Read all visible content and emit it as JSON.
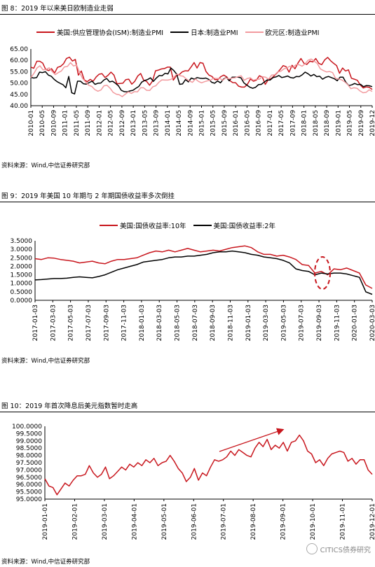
{
  "charts": [
    {
      "fig_title": "图 8：2019 年以来美日欧制造业走弱",
      "source": "资料来源：Wind,中信证券研究部",
      "legend": [
        "美国:供应管理协会(ISM):制造业PMI",
        "日本:制造业PMI",
        "欧元区:制造业PMI"
      ]
    },
    {
      "fig_title": "图 9：2019 年美国 10 年期与 2 年期国债收益率多次倒挂",
      "source": "资料来源：Wind,中信证券研究部",
      "legend": [
        "美国:国债收益率:10年",
        "美国:国债收益率:2年"
      ]
    },
    {
      "fig_title": "图 10：2019 年首次降息后美元指数暂时走高",
      "source": "资料来源：Wind,中信证券研究部",
      "legend": []
    }
  ],
  "watermark": "CITICS债券研究",
  "chart_data": [
    {
      "type": "line",
      "title": "",
      "ylim": [
        40,
        65
      ],
      "yticks": [
        "40.00",
        "45.00",
        "50.00",
        "55.00",
        "60.00",
        "65.00"
      ],
      "xticks": [
        "2010-01",
        "2010-05",
        "2010-09",
        "2011-01",
        "2011-05",
        "2011-09",
        "2012-01",
        "2012-05",
        "2012-09",
        "2013-01",
        "2013-05",
        "2013-09",
        "2014-01",
        "2014-05",
        "2014-09",
        "2015-01",
        "2015-05",
        "2015-09",
        "2016-01",
        "2016-05",
        "2016-09",
        "2017-01",
        "2017-05",
        "2017-09",
        "2018-01",
        "2018-05",
        "2018-09",
        "2019-01",
        "2019-05",
        "2019-09",
        "2019-12"
      ],
      "series": [
        {
          "name": "美国:供应管理协会(ISM):制造业PMI",
          "color": "#c8161d",
          "width": 1.5,
          "values": [
            57,
            56.5,
            59.6,
            59.6,
            58.8,
            56,
            55.5,
            56.3,
            54.4,
            56.9,
            57.3,
            58.5,
            60.8,
            61.4,
            59.7,
            60.4,
            53.5,
            55.3,
            51.4,
            50.6,
            51.6,
            50.8,
            52.7,
            53.9,
            54.1,
            52.4,
            53.4,
            54.8,
            53.5,
            49.7,
            49.8,
            49.9,
            51.5,
            51.7,
            49.5,
            50.7,
            53.1,
            54.2,
            51.3,
            50.7,
            49,
            50.9,
            55.4,
            55.7,
            56.2,
            56.4,
            57,
            57,
            51.3,
            53.2,
            53.7,
            54.9,
            55.4,
            55.3,
            57.1,
            59,
            56.6,
            59,
            58.7,
            55.1,
            53.5,
            52.9,
            51.5,
            51.5,
            52.8,
            53.5,
            52.7,
            51.1,
            50.2,
            50.1,
            48.6,
            48.2,
            48.2,
            49.5,
            51.8,
            50.8,
            51.3,
            53.2,
            52.6,
            49.4,
            51.5,
            51.9,
            53.2,
            54.5,
            56,
            57.7,
            57.2,
            54.8,
            57.8,
            56.3,
            58.8,
            60.8,
            58.7,
            58.2,
            59.7,
            59.3,
            60.8,
            58.7,
            58.1,
            60.2,
            61.3,
            59.8,
            58.7,
            57.7,
            54.3,
            56.6,
            55.3,
            55.8,
            52.1,
            51.7,
            51.2,
            49.1,
            47.8,
            48.3,
            48.1,
            47.2
          ]
        },
        {
          "name": "日本:制造业PMI",
          "color": "#000000",
          "width": 1.5,
          "values": [
            52.5,
            52.2,
            52.4,
            54.8,
            54.6,
            55,
            53.5,
            53,
            51.6,
            50.6,
            49.9,
            49.3,
            47.9,
            52.9,
            45.7,
            45.2,
            50.8,
            50.8,
            49.7,
            49.5,
            50.2,
            50.8,
            49.4,
            49.9,
            50,
            51.3,
            52,
            50.5,
            50.8,
            49.9,
            48.8,
            46.8,
            46.2,
            46.1,
            46.5,
            46.8,
            47.7,
            48.5,
            50.4,
            51.1,
            51.5,
            52.3,
            50.7,
            52.2,
            53.3,
            53.2,
            54.3,
            54,
            56.6,
            55.5,
            53.9,
            49.4,
            49.6,
            51.5,
            50.5,
            52.2,
            51.7,
            52.4,
            52.1,
            52,
            52.2,
            51.6,
            50.3,
            49.9,
            50.9,
            50.1,
            51.7,
            52.5,
            51,
            52.6,
            52.6,
            52.6,
            52.3,
            50.1,
            49.1,
            48.2,
            47.7,
            48.1,
            49.3,
            49.4,
            50.4,
            51.4,
            51.3,
            52.4,
            52.7,
            53.3,
            52.4,
            52.7,
            53.1,
            52.4,
            52.2,
            52.9,
            52.8,
            53.6,
            54.8,
            54.1,
            53.1,
            53.8,
            52.8,
            53,
            51.7,
            52.5,
            52.9,
            52.4,
            51.9,
            51,
            52.6,
            52.6,
            50.3,
            48.9,
            49.2,
            49.8,
            49.3,
            49.4,
            48.4,
            48.9,
            48.8,
            48.4
          ]
        },
        {
          "name": "欧元区:制造业PMI",
          "color": "#f29a9e",
          "width": 1.5,
          "values": [
            52.4,
            54.2,
            56.6,
            57.6,
            55.8,
            56,
            56.7,
            55.1,
            53.7,
            54.6,
            55.3,
            57.1,
            57.3,
            59,
            57.5,
            58,
            54.6,
            52,
            50.4,
            49,
            48.5,
            47.1,
            46.4,
            46.9,
            48.8,
            49,
            47.7,
            45.9,
            45.1,
            44.8,
            44,
            45.1,
            46.1,
            45.4,
            46.2,
            46.1,
            47.9,
            47.9,
            46.8,
            46.7,
            48.3,
            48.8,
            50.3,
            51.4,
            51.3,
            51.3,
            51.6,
            52.7,
            54,
            53.2,
            53,
            51.8,
            50.9,
            50.3,
            51.8,
            50.7,
            50.1,
            50.6,
            51,
            51.3,
            52.2,
            52,
            52,
            51.2,
            52.3,
            51.8,
            52.2,
            52.3,
            52.8,
            53.2,
            51.2,
            52,
            52.3,
            51.2,
            51.6,
            51.7,
            52.8,
            52.6,
            51.7,
            53.5,
            53.6,
            54.9,
            55.2,
            56.2,
            56.7,
            57.4,
            56.8,
            58.1,
            58.1,
            57.4,
            58.5,
            60.1,
            60.6,
            59.6,
            58.6,
            56.2,
            55.5,
            54.9,
            55.1,
            54.6,
            52,
            51.8,
            51.4,
            50.5,
            49.3,
            47.5,
            47.9,
            47.7,
            46.5,
            45.7,
            45.9,
            47,
            46.3
          ]
        }
      ]
    },
    {
      "type": "line",
      "title": "",
      "ylim": [
        0,
        3.5
      ],
      "yticks": [
        "0.0000",
        "0.5000",
        "1.0000",
        "1.5000",
        "2.0000",
        "2.5000",
        "3.0000",
        "3.5000"
      ],
      "xticks": [
        "2017-01-03",
        "2017-03-03",
        "2017-05-03",
        "2017-07-03",
        "2017-09-03",
        "2017-11-03",
        "2018-01-03",
        "2018-03-03",
        "2018-05-03",
        "2018-07-03",
        "2018-09-03",
        "2018-11-03",
        "2019-01-03",
        "2019-03-03",
        "2019-05-03",
        "2019-07-03",
        "2019-09-03",
        "2019-11-03",
        "2020-01-03",
        "2020-03-03"
      ],
      "series": [
        {
          "name": "美国:国债收益率:10年",
          "color": "#c8161d",
          "width": 1.5,
          "values": [
            2.45,
            2.4,
            2.5,
            2.48,
            2.4,
            2.35,
            2.3,
            2.2,
            2.25,
            2.3,
            2.2,
            2.15,
            2.3,
            2.4,
            2.4,
            2.45,
            2.5,
            2.65,
            2.8,
            2.9,
            2.85,
            2.95,
            2.85,
            2.95,
            3.05,
            2.95,
            2.85,
            2.9,
            2.95,
            2.9,
            3.0,
            3.1,
            3.15,
            3.2,
            3.1,
            2.85,
            2.7,
            2.7,
            2.6,
            2.65,
            2.55,
            2.4,
            2.1,
            2.05,
            1.6,
            1.7,
            1.5,
            1.85,
            1.8,
            1.9,
            1.75,
            1.6,
            0.9,
            0.7
          ]
        },
        {
          "name": "美国:国债收益率:2年",
          "color": "#000000",
          "width": 1.5,
          "values": [
            1.2,
            1.22,
            1.25,
            1.28,
            1.28,
            1.3,
            1.35,
            1.38,
            1.35,
            1.32,
            1.4,
            1.5,
            1.65,
            1.8,
            1.9,
            2.0,
            2.1,
            2.25,
            2.3,
            2.35,
            2.4,
            2.5,
            2.55,
            2.55,
            2.6,
            2.6,
            2.65,
            2.7,
            2.8,
            2.85,
            2.85,
            2.9,
            2.85,
            2.8,
            2.7,
            2.65,
            2.55,
            2.5,
            2.45,
            2.35,
            2.2,
            1.85,
            1.75,
            1.7,
            1.5,
            1.6,
            1.55,
            1.6,
            1.6,
            1.55,
            1.45,
            1.35,
            0.5,
            0.35
          ]
        }
      ],
      "annotations": [
        "ellipse"
      ]
    },
    {
      "type": "line",
      "title": "",
      "ylim": [
        95,
        100
      ],
      "yticks": [
        "95.0000",
        "95.5000",
        "96.0000",
        "96.5000",
        "97.0000",
        "97.5000",
        "98.0000",
        "98.5000",
        "99.0000",
        "99.5000",
        "100.0000"
      ],
      "xticks": [
        "2019-01-01",
        "2019-02-01",
        "2019-03-01",
        "2019-04-01",
        "2019-05-01",
        "2019-06-01",
        "2019-07-01",
        "2019-08-01",
        "2019-09-01",
        "2019-10-01",
        "2019-11-01",
        "2019-12-01"
      ],
      "series": [
        {
          "name": "",
          "color": "#c8161d",
          "width": 1.5,
          "values": [
            96.4,
            95.9,
            95.8,
            95.3,
            95.7,
            96.1,
            95.9,
            96.3,
            96.6,
            96.6,
            96.7,
            97.3,
            96.8,
            96.5,
            96.7,
            97.2,
            96.4,
            96.6,
            96.9,
            97.2,
            97.0,
            97.4,
            97.2,
            97.5,
            97.3,
            97.7,
            97.5,
            97.8,
            97.3,
            97.5,
            97.6,
            98.0,
            97.6,
            97.1,
            96.8,
            96.2,
            96.5,
            97.1,
            96.3,
            96.8,
            96.6,
            97.2,
            97.7,
            97.6,
            97.7,
            97.9,
            98.3,
            98.0,
            98.4,
            98.2,
            98.0,
            97.9,
            98.5,
            98.9,
            98.6,
            99.1,
            98.4,
            98.7,
            98.5,
            98.9,
            98.3,
            98.9,
            99.0,
            99.4,
            99.0,
            98.3,
            98.1,
            97.5,
            97.7,
            97.3,
            97.8,
            98.1,
            98.2,
            98.3,
            98.2,
            97.6,
            97.8,
            97.4,
            97.7,
            97.7,
            97.0,
            96.7
          ]
        }
      ],
      "annotations": [
        "arrow"
      ]
    }
  ]
}
